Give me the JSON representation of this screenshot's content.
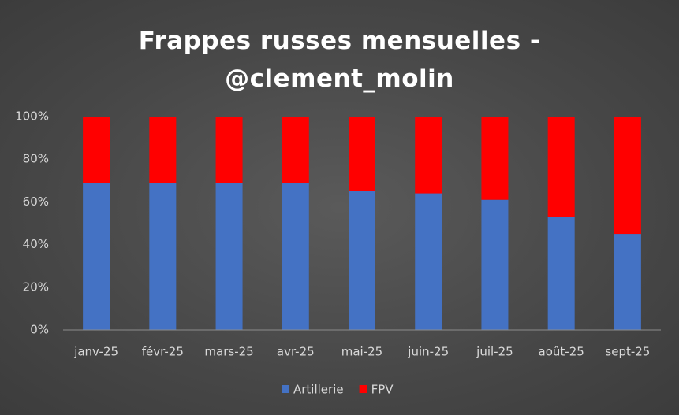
{
  "chart_data": {
    "type": "stacked_bar_percent",
    "title": "Frappes russes mensuelles - @clement_molin",
    "categories": [
      "janv-25",
      "févr-25",
      "mars-25",
      "avr-25",
      "mai-25",
      "juin-25",
      "juil-25",
      "août-25",
      "sept-25"
    ],
    "series": [
      {
        "name": "Artillerie",
        "color": "#4472c4",
        "values": [
          69,
          69,
          69,
          69,
          65,
          64,
          61,
          53,
          45
        ]
      },
      {
        "name": "FPV",
        "color": "#ff0000",
        "values": [
          31,
          31,
          31,
          31,
          35,
          36,
          39,
          47,
          55
        ]
      }
    ],
    "ylim": [
      0,
      100
    ],
    "yticks": [
      {
        "value": 0,
        "label": "0%"
      },
      {
        "value": 20,
        "label": "20%"
      },
      {
        "value": 40,
        "label": "40%"
      },
      {
        "value": 60,
        "label": "60%"
      },
      {
        "value": 80,
        "label": "80%"
      },
      {
        "value": 100,
        "label": "100%"
      }
    ],
    "grid": false,
    "legend": "bottom"
  }
}
